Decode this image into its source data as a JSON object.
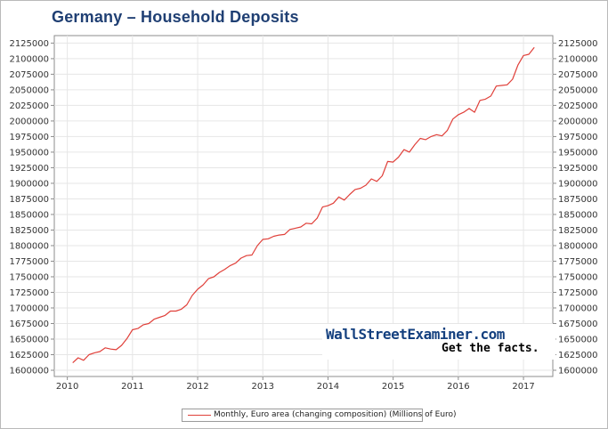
{
  "chart_data": {
    "type": "line",
    "title": "Germany – Household Deposits",
    "xlabel": "",
    "ylabel": "",
    "x_tick_labels": [
      "2010",
      "2011",
      "2012",
      "2013",
      "2014",
      "2015",
      "2016",
      "2017"
    ],
    "y_tick_labels": [
      "1600000",
      "1625000",
      "1650000",
      "1675000",
      "1700000",
      "1725000",
      "1750000",
      "1775000",
      "1800000",
      "1825000",
      "1850000",
      "1875000",
      "1900000",
      "1925000",
      "1950000",
      "1975000",
      "2000000",
      "2025000",
      "2050000",
      "2075000",
      "2100000",
      "2125000"
    ],
    "xlim": [
      2009.8,
      2017.45
    ],
    "ylim": [
      1590000,
      2137000
    ],
    "grid": true,
    "legend_position": "bottom-center",
    "series": [
      {
        "name": "Monthly, Euro area (changing composition) (Millions of Euro)",
        "color": "#e0403a",
        "x_start": 2010.083,
        "x_step": 0.08333,
        "values": [
          1612000,
          1620000,
          1616000,
          1625000,
          1628000,
          1630000,
          1636000,
          1634000,
          1633000,
          1640000,
          1651000,
          1665000,
          1667000,
          1673000,
          1675000,
          1682000,
          1685000,
          1688000,
          1695000,
          1695000,
          1698000,
          1705000,
          1720000,
          1730000,
          1737000,
          1747000,
          1750000,
          1757000,
          1762000,
          1768000,
          1772000,
          1780000,
          1784000,
          1785000,
          1800000,
          1810000,
          1811000,
          1815000,
          1817000,
          1818000,
          1826000,
          1828000,
          1830000,
          1836000,
          1835000,
          1844000,
          1862000,
          1864000,
          1868000,
          1878000,
          1873000,
          1882000,
          1890000,
          1892000,
          1897000,
          1907000,
          1903000,
          1912000,
          1935000,
          1934000,
          1942000,
          1954000,
          1950000,
          1962000,
          1972000,
          1970000,
          1975000,
          1978000,
          1976000,
          1985000,
          2003000,
          2010000,
          2014000,
          2020000,
          2014000,
          2033000,
          2035000,
          2040000,
          2056000,
          2057000,
          2058000,
          2067000,
          2090000,
          2105000,
          2107000,
          2118000
        ]
      }
    ]
  },
  "watermark": {
    "site": "WallStreetExaminer.com",
    "tagline": "Get the facts."
  }
}
